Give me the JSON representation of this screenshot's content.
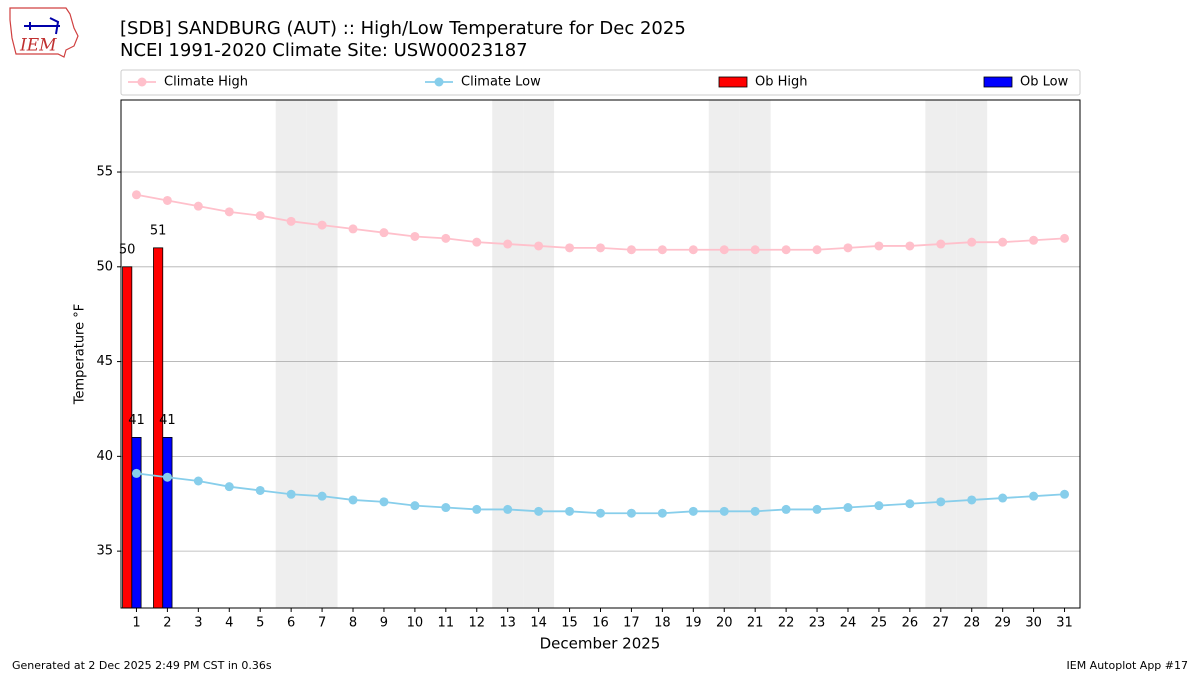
{
  "logo_text": "IEM",
  "footer_left": "Generated at 2 Dec 2025 2:49 PM CST in 0.36s",
  "footer_right": "IEM Autoplot App #17",
  "chart_data": {
    "type": "line_bar",
    "title": "[SDB] SANDBURG (AUT) :: High/Low Temperature for Dec 2025",
    "subtitle": "NCEI 1991-2020 Climate Site: USW00023187",
    "x_label": "December 2025",
    "y_label": "Temperature °F",
    "x": [
      1,
      2,
      3,
      4,
      5,
      6,
      7,
      8,
      9,
      10,
      11,
      12,
      13,
      14,
      15,
      16,
      17,
      18,
      19,
      20,
      21,
      22,
      23,
      24,
      25,
      26,
      27,
      28,
      29,
      30,
      31
    ],
    "xlim": [
      0.5,
      31.5
    ],
    "xticks": [
      1,
      2,
      3,
      4,
      5,
      6,
      7,
      8,
      9,
      10,
      11,
      12,
      13,
      14,
      15,
      16,
      17,
      18,
      19,
      20,
      21,
      22,
      23,
      24,
      25,
      26,
      27,
      28,
      29,
      30,
      31
    ],
    "ylim": [
      32,
      58.8
    ],
    "yticks": [
      35,
      40,
      45,
      50,
      55
    ],
    "grid": true,
    "shaded_days": [
      6,
      7,
      13,
      14,
      20,
      21,
      27,
      28
    ],
    "series": [
      {
        "name": "Climate High",
        "kind": "line",
        "color": "#ffc0cb",
        "values": [
          53.8,
          53.5,
          53.2,
          52.9,
          52.7,
          52.4,
          52.2,
          52.0,
          51.8,
          51.6,
          51.5,
          51.3,
          51.2,
          51.1,
          51.0,
          51.0,
          50.9,
          50.9,
          50.9,
          50.9,
          50.9,
          50.9,
          50.9,
          51.0,
          51.1,
          51.1,
          51.2,
          51.3,
          51.3,
          51.4,
          51.5
        ]
      },
      {
        "name": "Climate Low",
        "kind": "line",
        "color": "#87ceeb",
        "values": [
          39.1,
          38.9,
          38.7,
          38.4,
          38.2,
          38.0,
          37.9,
          37.7,
          37.6,
          37.4,
          37.3,
          37.2,
          37.2,
          37.1,
          37.1,
          37.0,
          37.0,
          37.0,
          37.1,
          37.1,
          37.1,
          37.2,
          37.2,
          37.3,
          37.4,
          37.5,
          37.6,
          37.7,
          37.8,
          37.9,
          38.0
        ]
      },
      {
        "name": "Ob High",
        "kind": "bar",
        "color": "#ff0000",
        "values": [
          50,
          51,
          null,
          null,
          null,
          null,
          null,
          null,
          null,
          null,
          null,
          null,
          null,
          null,
          null,
          null,
          null,
          null,
          null,
          null,
          null,
          null,
          null,
          null,
          null,
          null,
          null,
          null,
          null,
          null,
          null
        ]
      },
      {
        "name": "Ob Low",
        "kind": "bar",
        "color": "#0000ff",
        "values": [
          41,
          41,
          null,
          null,
          null,
          null,
          null,
          null,
          null,
          null,
          null,
          null,
          null,
          null,
          null,
          null,
          null,
          null,
          null,
          null,
          null,
          null,
          null,
          null,
          null,
          null,
          null,
          null,
          null,
          null,
          null
        ]
      }
    ]
  }
}
